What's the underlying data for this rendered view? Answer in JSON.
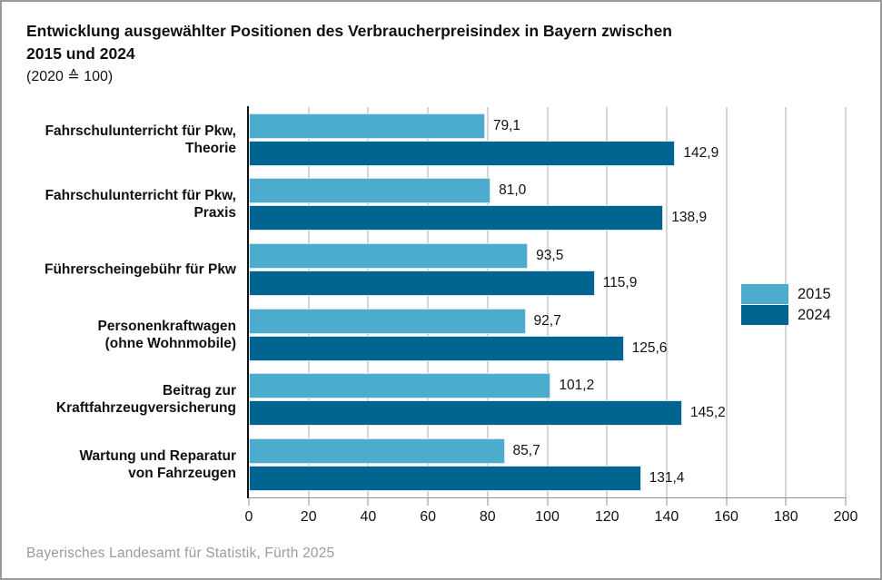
{
  "header": {
    "title_line1": "Entwicklung ausgewählter Positionen des Verbraucherpreisindex in Bayern zwischen",
    "title_line2": "2015 und 2024",
    "subtitle": "(2020 ≙ 100)"
  },
  "footer": {
    "source": "Bayerisches Landesamt für Statistik, Fürth 2025"
  },
  "chart_data": {
    "type": "bar",
    "orientation": "horizontal",
    "title": "Entwicklung ausgewählter Positionen des Verbraucherpreisindex in Bayern zwischen 2015 und 2024",
    "subtitle": "(2020 ≙ 100)",
    "source": "Bayerisches Landesamt für Statistik, Fürth 2025",
    "categories": [
      [
        "Fahrschulunterricht für Pkw,",
        "Theorie"
      ],
      [
        "Fahrschulunterricht für Pkw,",
        "Praxis"
      ],
      [
        "Führerscheingebühr für Pkw"
      ],
      [
        "Personenkraftwagen",
        "(ohne Wohnmobile)"
      ],
      [
        "Beitrag zur",
        "Kraftfahrzeugversicherung"
      ],
      [
        "Wartung und Reparatur",
        "von Fahrzeugen"
      ]
    ],
    "series": [
      {
        "name": "2015",
        "color": "#4bacce",
        "values": [
          79.1,
          81.0,
          93.5,
          92.7,
          101.2,
          85.7
        ],
        "value_labels": [
          "79,1",
          "81,0",
          "93,5",
          "92,7",
          "101,2",
          "85,7"
        ]
      },
      {
        "name": "2024",
        "color": "#006490",
        "values": [
          142.9,
          138.9,
          115.9,
          125.6,
          145.2,
          131.4
        ],
        "value_labels": [
          "142,9",
          "138,9",
          "115,9",
          "125,6",
          "145,2",
          "131,4"
        ]
      }
    ],
    "x_axis": {
      "min": 0,
      "max": 200,
      "tick_step": 20,
      "tick_labels": [
        "0",
        "20",
        "40",
        "60",
        "80",
        "100",
        "120",
        "140",
        "160",
        "180",
        "200"
      ]
    },
    "legend": {
      "position": "center-right",
      "entries": [
        {
          "label": "2015",
          "color": "#4bacce"
        },
        {
          "label": "2024",
          "color": "#006490"
        }
      ]
    },
    "grid": true,
    "styles": {
      "grid_color": "#ababab",
      "axis_color": "#8f8f8f",
      "text_color": "#111111",
      "bar_border_color": "#d3e5ef"
    }
  }
}
